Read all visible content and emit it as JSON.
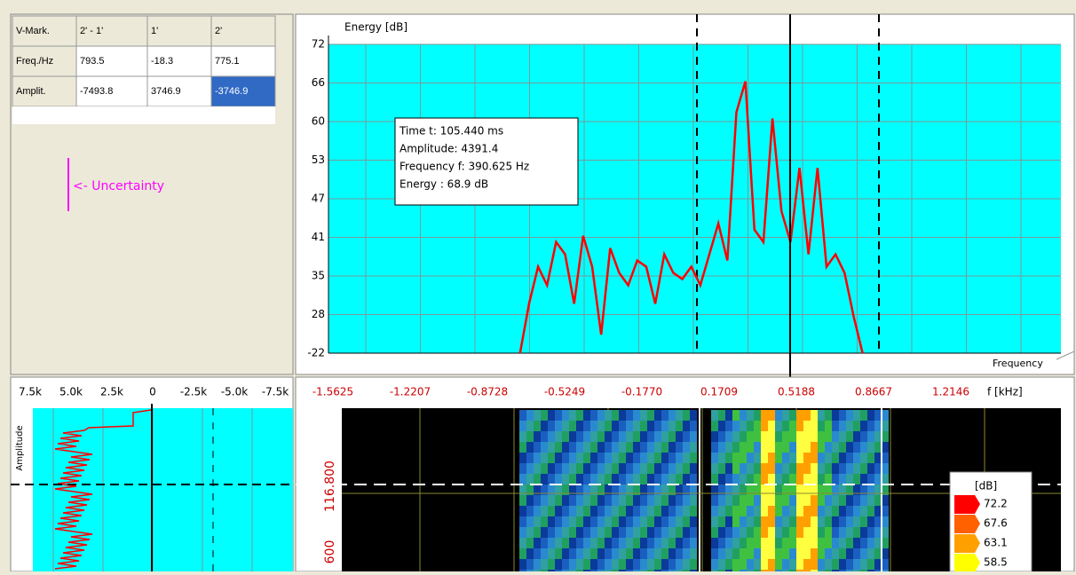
{
  "table": {
    "header": [
      "V-Mark.",
      "2' - 1'",
      "1'",
      "2'"
    ],
    "rows": [
      [
        "Freq./Hz",
        "793.5",
        "-18.3",
        "775.1"
      ],
      [
        "Amplit.",
        "-7493.8",
        "3746.9",
        "-3746.9"
      ]
    ]
  },
  "annotation": "<- Uncertainty",
  "spectrum": {
    "y_label": "Energy [dB]",
    "x_label": "Frequency",
    "y_tick_labels": [
      "72",
      "66",
      "60",
      "53",
      "47",
      "41",
      "35",
      "28",
      "-22"
    ],
    "tooltip": [
      "Time t: 105.440 ms",
      "Amplitude: 4391.4",
      "Frequency f: 390.625 Hz",
      "Energy : 68.9 dB"
    ],
    "trace": {
      "x": [
        -0.8,
        -0.76,
        -0.72,
        -0.68,
        -0.64,
        -0.6,
        -0.56,
        -0.52,
        -0.48,
        -0.44,
        -0.4,
        -0.36,
        -0.32,
        -0.28,
        -0.24,
        -0.2,
        -0.16,
        -0.12,
        -0.08,
        -0.04,
        0,
        0.04,
        0.08,
        0.12,
        0.16,
        0.2,
        0.24,
        0.28,
        0.32,
        0.36,
        0.4,
        0.44,
        0.48,
        0.52,
        0.56,
        0.6,
        0.64,
        0.68,
        0.72
      ],
      "values": [
        22,
        30,
        36,
        33,
        40,
        38,
        30,
        41,
        36,
        25,
        39,
        35,
        33,
        37,
        36,
        30,
        38,
        35,
        34,
        36,
        33,
        38,
        43,
        37,
        61,
        66,
        42,
        40,
        60,
        45,
        40,
        52,
        38,
        52,
        36,
        38,
        35,
        28,
        22
      ],
      "color": "#ff0000",
      "xlim": [
        -1.65,
        1.6
      ],
      "ylim": [
        22,
        72
      ]
    }
  },
  "amplitude_panel": {
    "y_label": "Amplitude",
    "x_tick_labels": [
      "7.5k",
      "5.0k",
      "2.5k",
      "0",
      "-2.5k",
      "-5.0k",
      "-7.5k"
    ]
  },
  "spectrogram": {
    "x_tick_labels": [
      "-1.5625",
      "-1.2207",
      "-0.8728",
      "-0.5249",
      "-0.1770",
      "0.1709",
      "0.5188",
      "0.8667",
      "1.2146"
    ],
    "x_unit": "f [kHz]",
    "y_tick_labels": [
      "116.800",
      "600"
    ],
    "legend": {
      "title": "[dB]",
      "labels": [
        "72.2",
        "67.6",
        "63.1",
        "58.5"
      ]
    }
  }
}
